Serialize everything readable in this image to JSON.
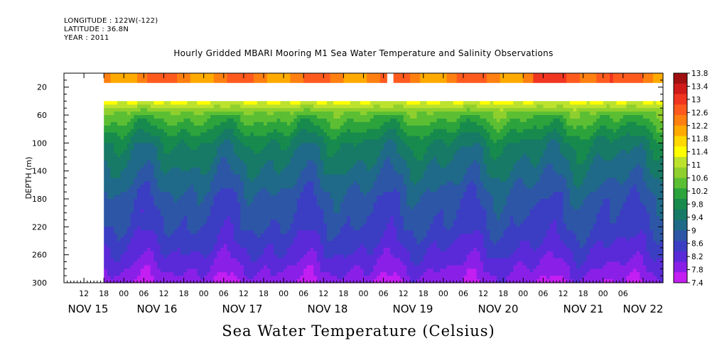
{
  "meta": {
    "longitude": "LONGITUDE : 122W(-122)",
    "latitude": "LATITUDE : 36.8N",
    "year": "YEAR : 2011"
  },
  "chart_data": {
    "type": "heatmap",
    "title": "Hourly Gridded MBARI Mooring M1 Sea Water Temperature and Salinity Observations",
    "xlabel": "Sea Water Temperature (Celsius)",
    "ylabel": "DEPTH (m)",
    "y_range": [
      300,
      0
    ],
    "y_ticks": [
      20,
      60,
      100,
      140,
      180,
      220,
      260,
      300
    ],
    "x_hour_ticks": [
      "12",
      "18",
      "00",
      "06",
      "12",
      "18",
      "00",
      "06",
      "12",
      "18",
      "00",
      "06",
      "12",
      "18",
      "00",
      "06",
      "12",
      "18",
      "00",
      "06",
      "12",
      "18",
      "00",
      "06",
      "12",
      "18",
      "00",
      "06"
    ],
    "x_day_labels": [
      "NOV 15",
      "NOV 16",
      "NOV 17",
      "NOV 18",
      "NOV 19",
      "NOV 20",
      "NOV 21",
      "NOV 22"
    ],
    "x_start": "2011-11-15T06:00",
    "x_end": "2011-11-22T12:00",
    "data_start": "2011-11-15T18:00",
    "colorbar": {
      "levels": [
        13.8,
        13.4,
        13,
        12.6,
        12.2,
        11.8,
        11.4,
        11,
        10.6,
        10.2,
        9.8,
        9.4,
        9,
        8.6,
        8.2,
        7.8,
        7.4
      ],
      "colors": [
        "#a01010",
        "#d01a1a",
        "#f03520",
        "#ff5a1e",
        "#ff7f10",
        "#ffaa00",
        "#ffd800",
        "#ffff00",
        "#bde22e",
        "#8fd02e",
        "#5cbf33",
        "#2da33c",
        "#178a4d",
        "#177a66",
        "#1f6a88",
        "#2d56a6",
        "#3b3ec3",
        "#5a2ad8",
        "#8a20e8",
        "#c31ef2"
      ]
    },
    "series": [
      {
        "depth": 10,
        "temperature": 12.6
      },
      {
        "depth": 40,
        "temperature": 11.4
      },
      {
        "depth": 60,
        "temperature": 10.4
      },
      {
        "depth": 100,
        "temperature": 9.5
      },
      {
        "depth": 140,
        "temperature": 9.1
      },
      {
        "depth": 180,
        "temperature": 8.7
      },
      {
        "depth": 220,
        "temperature": 8.5
      },
      {
        "depth": 260,
        "temperature": 8.1
      },
      {
        "depth": 300,
        "temperature": 7.6
      }
    ]
  }
}
